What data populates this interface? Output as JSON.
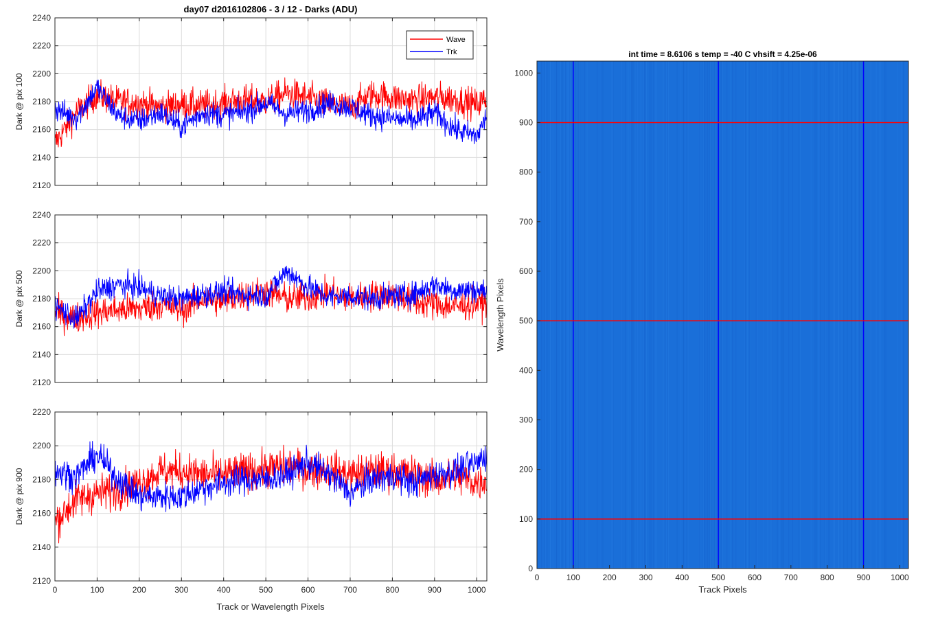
{
  "colors": {
    "wave": "#ff0000",
    "trk": "#0000ff",
    "image_fill": "#1a6fd9",
    "axes": "#262626",
    "grid": "#dcdcdc"
  },
  "figure": {
    "title": "day07 d2016102806 - 3 / 12 - Darks (ADU)",
    "xlabel": "Track or Wavelength Pixels"
  },
  "legend": {
    "wave": "Wave",
    "trk": "Trk",
    "placement": "top-right"
  },
  "chart_data": [
    {
      "type": "line",
      "ylabel": "Dark @ pix 100",
      "xlim": [
        0,
        1024
      ],
      "ylim": [
        2120,
        2240
      ],
      "xticks": [
        0,
        100,
        200,
        300,
        400,
        500,
        600,
        700,
        800,
        900,
        1000
      ],
      "yticks": [
        2120,
        2140,
        2160,
        2180,
        2200,
        2220,
        2240
      ],
      "grid": true,
      "series": [
        {
          "name": "Wave",
          "color": "#ff0000",
          "x": [
            0,
            50,
            100,
            150,
            200,
            250,
            300,
            350,
            400,
            450,
            500,
            550,
            600,
            650,
            700,
            750,
            800,
            850,
            900,
            950,
            1000,
            1024
          ],
          "y": [
            2150,
            2172,
            2185,
            2180,
            2179,
            2176,
            2178,
            2177,
            2179,
            2181,
            2180,
            2186,
            2183,
            2178,
            2176,
            2185,
            2183,
            2181,
            2183,
            2182,
            2178,
            2182
          ]
        },
        {
          "name": "Trk",
          "color": "#0000ff",
          "x": [
            0,
            50,
            100,
            150,
            200,
            250,
            300,
            350,
            400,
            450,
            500,
            550,
            600,
            650,
            700,
            750,
            800,
            850,
            900,
            950,
            1000,
            1024
          ],
          "y": [
            2175,
            2168,
            2190,
            2170,
            2166,
            2172,
            2162,
            2172,
            2170,
            2173,
            2179,
            2171,
            2174,
            2179,
            2176,
            2170,
            2168,
            2166,
            2172,
            2160,
            2155,
            2170
          ]
        }
      ]
    },
    {
      "type": "line",
      "ylabel": "Dark @ pix 500",
      "xlim": [
        0,
        1024
      ],
      "ylim": [
        2120,
        2240
      ],
      "xticks": [
        0,
        100,
        200,
        300,
        400,
        500,
        600,
        700,
        800,
        900,
        1000
      ],
      "yticks": [
        2120,
        2140,
        2160,
        2180,
        2200,
        2220,
        2240
      ],
      "grid": true,
      "series": [
        {
          "name": "Wave",
          "color": "#ff0000",
          "x": [
            0,
            50,
            100,
            150,
            200,
            250,
            300,
            350,
            400,
            450,
            500,
            550,
            600,
            650,
            700,
            750,
            800,
            850,
            900,
            950,
            1000,
            1024
          ],
          "y": [
            2170,
            2166,
            2170,
            2172,
            2173,
            2176,
            2172,
            2180,
            2178,
            2183,
            2185,
            2180,
            2181,
            2184,
            2180,
            2182,
            2183,
            2178,
            2176,
            2174,
            2177,
            2178
          ]
        },
        {
          "name": "Trk",
          "color": "#0000ff",
          "x": [
            0,
            50,
            100,
            150,
            200,
            250,
            300,
            350,
            400,
            450,
            500,
            550,
            600,
            650,
            700,
            750,
            800,
            850,
            900,
            950,
            1000,
            1024
          ],
          "y": [
            2175,
            2165,
            2185,
            2190,
            2188,
            2182,
            2180,
            2183,
            2185,
            2183,
            2182,
            2200,
            2188,
            2181,
            2182,
            2180,
            2182,
            2183,
            2190,
            2186,
            2186,
            2185
          ]
        }
      ]
    },
    {
      "type": "line",
      "ylabel": "Dark @ pix 900",
      "xlim": [
        0,
        1024
      ],
      "ylim": [
        2120,
        2220
      ],
      "xticks": [
        0,
        100,
        200,
        300,
        400,
        500,
        600,
        700,
        800,
        900,
        1000
      ],
      "yticks": [
        2120,
        2140,
        2160,
        2180,
        2200,
        2220
      ],
      "grid": true,
      "series": [
        {
          "name": "Wave",
          "color": "#ff0000",
          "x": [
            0,
            50,
            100,
            150,
            200,
            250,
            300,
            350,
            400,
            450,
            500,
            550,
            600,
            650,
            700,
            750,
            800,
            850,
            900,
            950,
            1000,
            1024
          ],
          "y": [
            2155,
            2168,
            2172,
            2174,
            2178,
            2185,
            2185,
            2183,
            2183,
            2185,
            2186,
            2188,
            2186,
            2186,
            2183,
            2185,
            2185,
            2183,
            2180,
            2182,
            2178,
            2180
          ]
        },
        {
          "name": "Trk",
          "color": "#0000ff",
          "x": [
            0,
            50,
            100,
            150,
            200,
            250,
            300,
            350,
            400,
            450,
            500,
            550,
            600,
            650,
            700,
            750,
            800,
            850,
            900,
            950,
            1000,
            1024
          ],
          "y": [
            2185,
            2182,
            2195,
            2180,
            2170,
            2170,
            2170,
            2175,
            2178,
            2180,
            2180,
            2183,
            2190,
            2183,
            2172,
            2180,
            2182,
            2178,
            2183,
            2185,
            2190,
            2195
          ]
        }
      ]
    },
    {
      "type": "heatmap",
      "title": "int time = 8.6106 s    temp = -40 C    vhsift = 4.25e-06",
      "xlabel": "Track Pixels",
      "ylabel": "Wavelength Pixels",
      "xlim": [
        0,
        1024
      ],
      "ylim": [
        0,
        1024
      ],
      "xticks": [
        0,
        100,
        200,
        300,
        400,
        500,
        600,
        700,
        800,
        900,
        1000
      ],
      "yticks": [
        0,
        100,
        200,
        300,
        400,
        500,
        600,
        700,
        800,
        900,
        1000
      ],
      "vertical_lines_x": [
        100,
        500,
        900
      ],
      "horizontal_lines_y": [
        100,
        500,
        900
      ]
    }
  ]
}
